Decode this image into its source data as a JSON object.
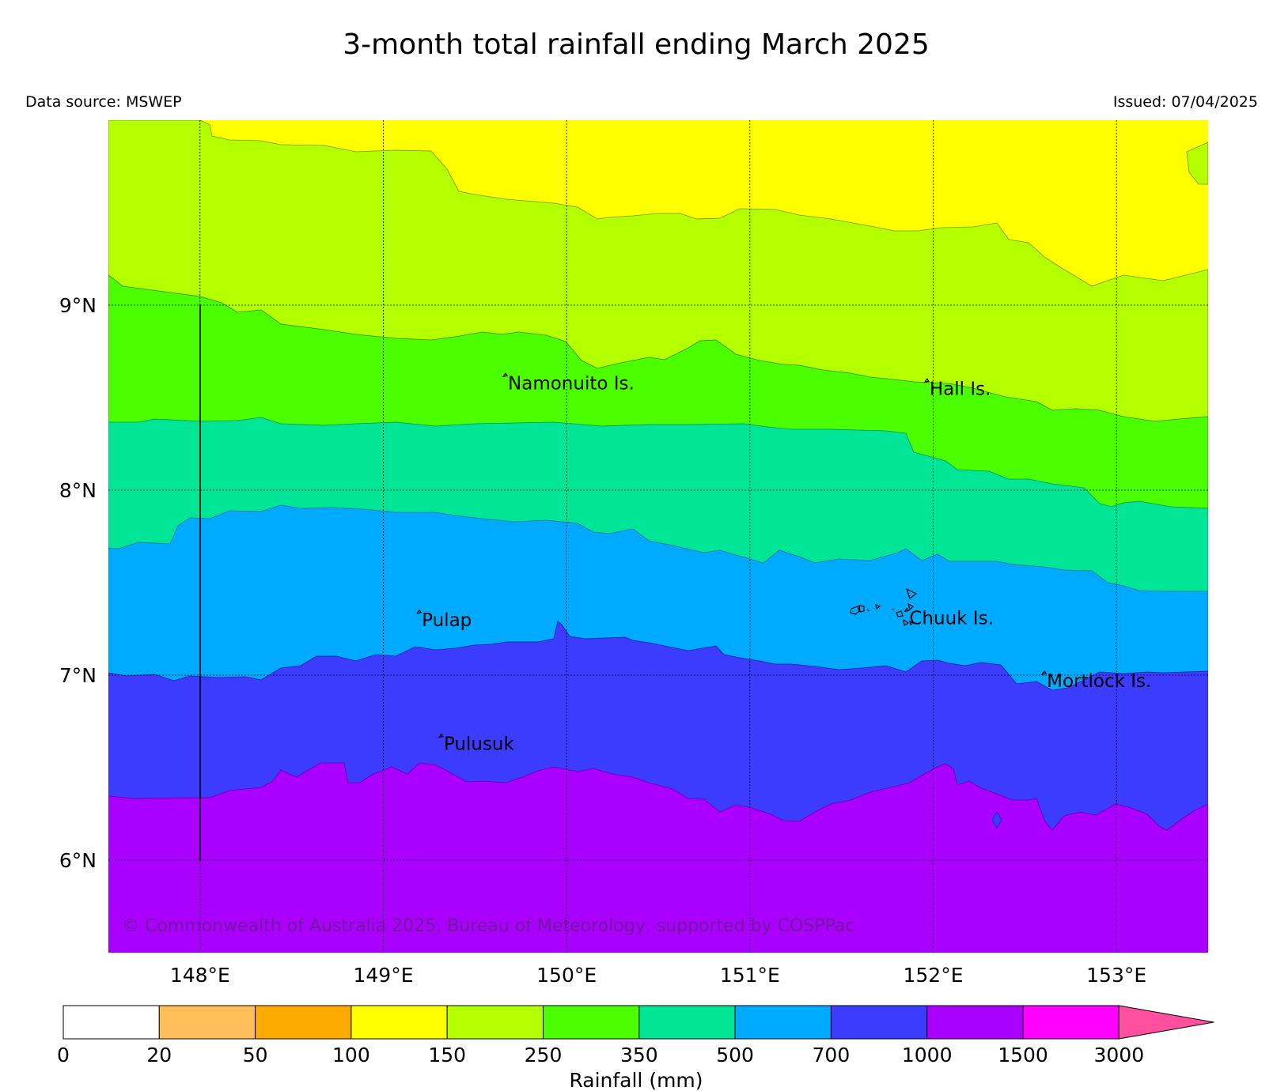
{
  "title": "3-month total rainfall ending March 2025",
  "data_source": "Data source: MSWEP",
  "issued": "Issued: 07/04/2025",
  "copyright": "© Commonwealth of Australia 2025, Bureau of Meteorology, supported by COSPPac",
  "map": {
    "lon_range": [
      147.5,
      153.5
    ],
    "lat_range": [
      5.5,
      10.0
    ],
    "lon_ticks": [
      "148°E",
      "149°E",
      "150°E",
      "151°E",
      "152°E",
      "153°E"
    ],
    "lat_ticks": [
      "9°N",
      "8°N",
      "7°N",
      "6°N"
    ],
    "grid": true
  },
  "places": [
    {
      "name": "Namonuito Is.",
      "lon": 149.68,
      "lat": 8.58
    },
    {
      "name": "Hall Is.",
      "lon": 151.98,
      "lat": 8.55
    },
    {
      "name": "Pulap",
      "lon": 149.21,
      "lat": 7.3
    },
    {
      "name": "Chuuk Is.",
      "lon": 151.87,
      "lat": 7.31
    },
    {
      "name": "Mortlock Is.",
      "lon": 152.62,
      "lat": 6.97
    },
    {
      "name": "Pulusuk",
      "lon": 149.33,
      "lat": 6.63
    }
  ],
  "colorbar": {
    "label": "Rainfall (mm)",
    "ticks": [
      "0",
      "20",
      "50",
      "100",
      "150",
      "250",
      "350",
      "500",
      "700",
      "1000",
      "1500",
      "3000"
    ],
    "colors": [
      "#ffffff",
      "#ffbe5a",
      "#ffaa00",
      "#ffff00",
      "#b4ff00",
      "#4bff00",
      "#00e696",
      "#00aaff",
      "#3c3cff",
      "#aa00ff",
      "#ff00ff"
    ],
    "extend_color": "#ff50a0"
  },
  "chart_data": {
    "type": "heatmap",
    "title": "3-month total rainfall ending March 2025",
    "xlabel": "",
    "ylabel": "",
    "x_ticks": [
      "148°E",
      "149°E",
      "150°E",
      "151°E",
      "152°E",
      "153°E"
    ],
    "y_ticks": [
      "9°N",
      "8°N",
      "7°N",
      "6°N"
    ],
    "colorbar_label": "Rainfall (mm)",
    "levels": [
      0,
      20,
      50,
      100,
      150,
      250,
      350,
      500,
      700,
      1000,
      1500,
      3000
    ],
    "bands": [
      {
        "range": "100-150",
        "color": "#ffff00",
        "north_of_lat_at_lon": [
          [
            147.5,
            10.0
          ],
          [
            148.07,
            9.95
          ],
          [
            149.0,
            9.86
          ],
          [
            149.4,
            9.61
          ],
          [
            150.2,
            9.5
          ],
          [
            151.0,
            9.52
          ],
          [
            151.5,
            9.44
          ],
          [
            152.0,
            9.42
          ],
          [
            152.5,
            9.35
          ],
          [
            152.85,
            9.12
          ],
          [
            153.5,
            9.18
          ]
        ]
      },
      {
        "range": "150-250",
        "color": "#b4ff00",
        "north_of_lat_at_lon": [
          [
            147.5,
            9.17
          ],
          [
            148.0,
            9.06
          ],
          [
            148.5,
            8.91
          ],
          [
            149.0,
            8.84
          ],
          [
            149.5,
            8.82
          ],
          [
            150.0,
            8.82
          ],
          [
            150.2,
            8.66
          ],
          [
            150.8,
            8.79
          ],
          [
            151.2,
            8.7
          ],
          [
            151.8,
            8.6
          ],
          [
            152.5,
            8.48
          ],
          [
            153.0,
            8.41
          ],
          [
            153.5,
            8.41
          ]
        ]
      },
      {
        "range": "250-350",
        "color": "#4bff00",
        "north_of_lat_at_lon": [
          [
            147.5,
            8.38
          ],
          [
            148.0,
            8.38
          ],
          [
            149.0,
            8.37
          ],
          [
            150.0,
            8.38
          ],
          [
            151.0,
            8.38
          ],
          [
            151.75,
            8.33
          ],
          [
            152.0,
            8.12
          ],
          [
            152.5,
            8.06
          ],
          [
            153.0,
            7.93
          ],
          [
            153.5,
            7.91
          ]
        ]
      },
      {
        "range": "350-500",
        "color": "#00e696",
        "north_of_lat_at_lon": [
          [
            147.5,
            7.7
          ],
          [
            147.8,
            7.71
          ],
          [
            148.1,
            7.85
          ],
          [
            148.5,
            7.93
          ],
          [
            149.0,
            7.88
          ],
          [
            149.5,
            7.86
          ],
          [
            150.0,
            7.84
          ],
          [
            150.5,
            7.72
          ],
          [
            151.0,
            7.63
          ],
          [
            151.5,
            7.65
          ],
          [
            151.85,
            7.71
          ],
          [
            152.0,
            7.62
          ],
          [
            152.5,
            7.59
          ],
          [
            153.0,
            7.53
          ],
          [
            153.5,
            7.45
          ]
        ]
      },
      {
        "range": "500-700",
        "color": "#00aaff",
        "north_of_lat_at_lon": [
          [
            147.5,
            7.03
          ],
          [
            148.0,
            7.02
          ],
          [
            148.5,
            7.02
          ],
          [
            149.0,
            7.13
          ],
          [
            149.5,
            7.16
          ],
          [
            149.9,
            7.2
          ],
          [
            149.96,
            7.32
          ],
          [
            150.5,
            7.16
          ],
          [
            151.0,
            7.14
          ],
          [
            151.5,
            7.05
          ],
          [
            152.0,
            7.06
          ],
          [
            152.4,
            6.95
          ],
          [
            152.8,
            6.94
          ],
          [
            153.5,
            7.03
          ]
        ]
      },
      {
        "range": "700-1000",
        "color": "#3c3cff",
        "north_of_lat_at_lon": [
          [
            147.5,
            6.35
          ],
          [
            148.0,
            6.36
          ],
          [
            148.5,
            6.49
          ],
          [
            149.0,
            6.53
          ],
          [
            149.5,
            6.45
          ],
          [
            150.0,
            6.48
          ],
          [
            150.5,
            6.38
          ],
          [
            150.8,
            6.25
          ],
          [
            151.2,
            6.2
          ],
          [
            151.5,
            6.33
          ],
          [
            152.0,
            6.54
          ],
          [
            152.4,
            6.35
          ],
          [
            152.6,
            6.16
          ],
          [
            153.0,
            6.3
          ],
          [
            153.25,
            6.17
          ],
          [
            153.5,
            6.31
          ]
        ]
      },
      {
        "range": "1000-1500",
        "color": "#aa00ff",
        "north_of_lat_at_lon": [
          [
            147.5,
            5.5
          ],
          [
            153.5,
            5.5
          ]
        ]
      }
    ]
  }
}
